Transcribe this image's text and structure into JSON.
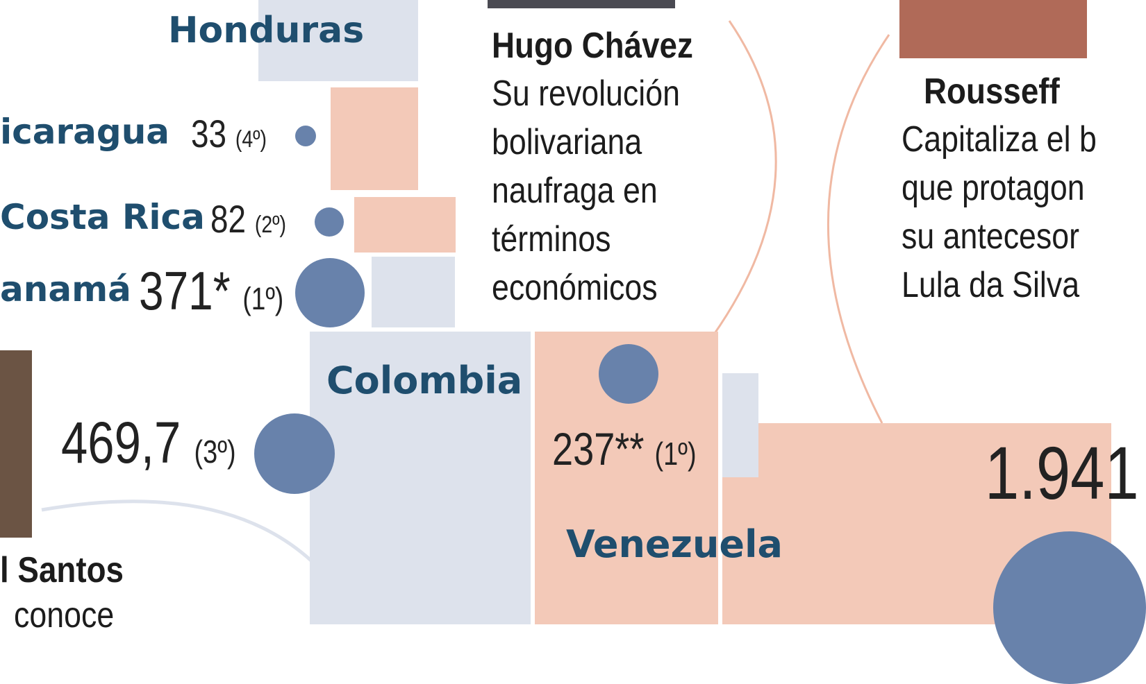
{
  "countries": {
    "honduras": {
      "name": "Honduras"
    },
    "nicaragua": {
      "name": "icaragua",
      "value": "33",
      "rank": "(4º)"
    },
    "costa_rica": {
      "name": "Costa Rica",
      "value": "82",
      "rank": "(2º)"
    },
    "panama": {
      "name": "anamá",
      "value": "371*",
      "rank": "(1º)"
    },
    "colombia": {
      "name": "Colombia",
      "value": "469,7",
      "rank": "(3º)"
    },
    "venezuela": {
      "name": "Venezuela",
      "value": "237**",
      "rank": "(1º)"
    },
    "brazil": {
      "value": "1.941"
    }
  },
  "people": {
    "chavez": {
      "name": "Hugo Chávez",
      "lines": [
        "Su revolución",
        "bolivariana",
        "naufraga en",
        "términos",
        "económicos"
      ]
    },
    "rousseff": {
      "name": "Rousseff",
      "lines": [
        "Capitaliza el b",
        "que protagon",
        "su antecesor",
        "Lula da Silva"
      ]
    },
    "santos": {
      "name": "l Santos",
      "lines": [
        "conoce"
      ]
    }
  },
  "colors": {
    "blue_block": "#dde2ec",
    "pink_block": "#f3c9b8",
    "dot": "#6882ab",
    "country_text": "#1f4e6e",
    "curve": "#f0b9a3",
    "curve_blue": "#dde2ec"
  }
}
